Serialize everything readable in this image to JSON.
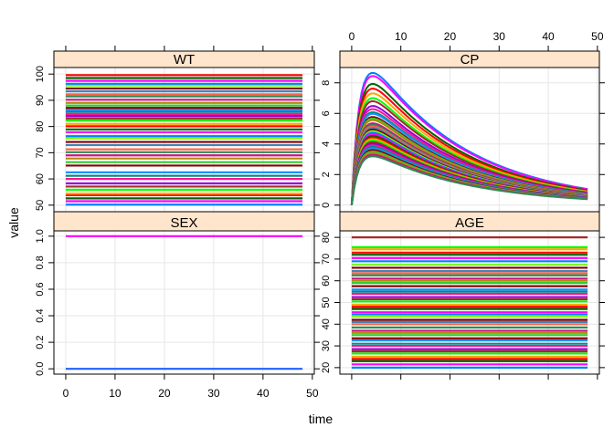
{
  "chart_data": {
    "type": "line",
    "layout": "lattice 2x2",
    "xlabel": "time",
    "ylabel": "value",
    "xlim": [
      -2.4,
      50.4
    ],
    "x_ticks": [
      0,
      10,
      20,
      30,
      40,
      50
    ],
    "grid": true,
    "strip_color": "#ffe5cc",
    "grid_color": "#e6e6e6",
    "x": [
      0,
      48
    ],
    "panels": [
      {
        "strip": "WT",
        "position": "top-left",
        "ylim": [
          47.5,
          102.5
        ],
        "y_ticks": [
          50,
          60,
          70,
          80,
          90,
          100
        ],
        "series_note": "constant covariate per subject",
        "levels": [
          50.2,
          51.5,
          52.6,
          53.8,
          54.4,
          55.9,
          57.1,
          58.3,
          60.0,
          61.2,
          62.5,
          65.1,
          66.4,
          67.8,
          69.0,
          70.2,
          71.3,
          72.9,
          74.1,
          75.5,
          76.3,
          77.8,
          78.9,
          80.1,
          81.0,
          82.3,
          83.1,
          84.0,
          84.8,
          85.6,
          86.3,
          87.1,
          88.0,
          89.0,
          90.2,
          91.5,
          92.3,
          93.4,
          94.5,
          95.6,
          96.3,
          97.4,
          98.5,
          99.6
        ]
      },
      {
        "strip": "CP",
        "position": "top-right",
        "ylim": [
          -0.43,
          9.0
        ],
        "y_ticks": [
          0,
          2,
          4,
          6,
          8
        ],
        "series_note": "one-compartment PK curve per subject; profile = peak * (exp(-0.05 t) - exp(-0.65 t)) / 0.7237",
        "peaks": [
          8.4,
          8.2,
          7.7,
          7.4,
          7.1,
          6.8,
          6.6,
          6.3,
          6.1,
          5.9,
          5.8,
          5.6,
          5.5,
          5.4,
          5.2,
          5.1,
          5.0,
          4.9,
          4.8,
          4.7,
          4.6,
          4.5,
          4.4,
          4.3,
          4.2,
          4.1,
          4.0,
          3.9,
          3.8,
          3.7,
          3.6,
          3.5,
          3.4,
          3.3,
          3.2,
          3.1
        ]
      },
      {
        "strip": "SEX",
        "position": "bottom-left",
        "ylim": [
          -0.04,
          1.04
        ],
        "y_ticks": [
          0.0,
          0.2,
          0.4,
          0.6,
          0.8,
          1.0
        ],
        "series_note": "binary covariate",
        "levels": [
          0,
          1
        ]
      },
      {
        "strip": "AGE",
        "position": "bottom-right",
        "ylim": [
          17.0,
          83.0
        ],
        "y_ticks": [
          20,
          30,
          40,
          50,
          60,
          70,
          80
        ],
        "series_note": "constant covariate per subject",
        "levels": [
          20.0,
          21.5,
          23.0,
          24.0,
          25.0,
          26.5,
          27.5,
          28.5,
          30.0,
          31.0,
          32.5,
          33.5,
          35.0,
          36.0,
          37.0,
          38.5,
          40.0,
          41.0,
          42.0,
          43.5,
          44.5,
          45.5,
          47.0,
          48.0,
          49.0,
          50.5,
          51.5,
          52.5,
          54.0,
          55.0,
          56.0,
          57.5,
          59.0,
          60.0,
          61.0,
          62.5,
          63.5,
          64.5,
          66.0,
          67.5,
          69.0,
          70.5,
          72.0,
          73.0,
          74.5,
          75.5,
          80.0
        ]
      }
    ],
    "palette": [
      "#0080ff",
      "#ff00ff",
      "#006400",
      "#ff0000",
      "#ffa500",
      "#00ff00",
      "#a52a2a",
      "#9400d3",
      "#ff1493",
      "#008b8b",
      "#1e90ff",
      "#8b0000",
      "#32cd32",
      "#b8860b",
      "#c71585",
      "#2e8b57",
      "#ff6347",
      "#4682b4",
      "#800000",
      "#7cfc00"
    ]
  }
}
